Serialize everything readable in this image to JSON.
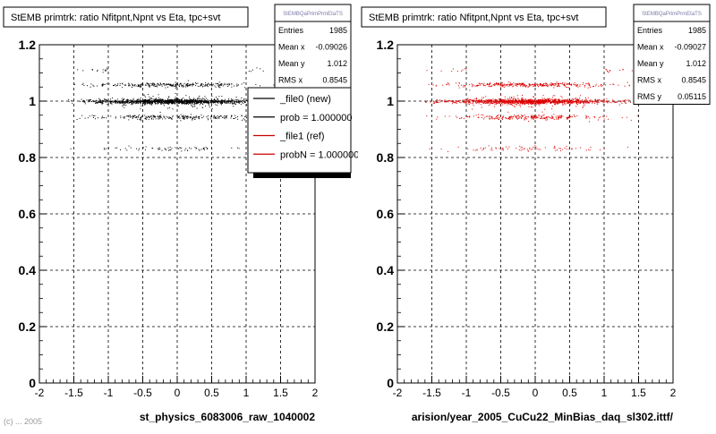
{
  "colors": {
    "frame": "#000000",
    "grid": "#000000",
    "stats_title": "#7a7aa8",
    "footer": "#999999"
  },
  "footer": {
    "text": "(c) ... 2005"
  },
  "chart_data": [
    {
      "type": "scatter",
      "title": "StEMB primtrk: ratio Nfitpnt,Npnt vs Eta, tpc+svt",
      "xlabel": "st_physics_6083006_raw_1040002",
      "ylabel": "",
      "xlim": [
        -2,
        2
      ],
      "ylim": [
        0,
        1.2
      ],
      "xticks": [
        "-2",
        "-1.5",
        "-1",
        "-0.5",
        "0",
        "0.5",
        "1",
        "1.5",
        "2"
      ],
      "yticks": [
        "0",
        "0.2",
        "0.4",
        "0.6",
        "0.8",
        "1",
        "1.2"
      ],
      "grid": true,
      "marker_color": "#000000",
      "stats": {
        "title": "StEMBQaPrimPrmEtaTS",
        "rows": [
          {
            "label": "Entries",
            "value": "1985"
          },
          {
            "label": "Mean x",
            "value": "-0.09026"
          },
          {
            "label": "Mean y",
            "value": "1.012"
          },
          {
            "label": "RMS x",
            "value": "0.8545"
          }
        ]
      },
      "legend": {
        "placement": "top-right",
        "entries": [
          {
            "label": "_file0 (new)",
            "color": "#000000"
          },
          {
            "label": "prob = 1.000000",
            "color": "#000000"
          },
          {
            "label": "_file1 (ref)",
            "color": "#cc0000"
          },
          {
            "label": "probN = 1.000000",
            "color": "#cc0000"
          }
        ]
      },
      "distribution": {
        "entries": 1985,
        "mean_x": -0.09026,
        "rms_x": 0.8545,
        "mean_y": 1.012,
        "rms_y": 0.05115,
        "x_range": [
          -1.6,
          1.6
        ],
        "y_levels": [
          1.0,
          1.111,
          1.059,
          0.944,
          0.833
        ],
        "y_level_weights": [
          0.58,
          0.1,
          0.16,
          0.12,
          0.04
        ]
      }
    },
    {
      "type": "scatter",
      "title": "StEMB primtrk: ratio Nfitpnt,Npnt vs Eta, tpc+svt",
      "xlabel": "arision/year_2005_CuCu22_MinBias_daq_sl302.ittf/",
      "ylabel": "",
      "xlim": [
        -2,
        2
      ],
      "ylim": [
        0,
        1.2
      ],
      "xticks": [
        "-2",
        "-1.5",
        "-1",
        "-0.5",
        "0",
        "0.5",
        "1",
        "1.5",
        "2"
      ],
      "yticks": [
        "0",
        "0.2",
        "0.4",
        "0.6",
        "0.8",
        "1",
        "1.2"
      ],
      "grid": true,
      "marker_color": "#dd0000",
      "stats": {
        "title": "StEMBQaPrimPrmEtaTS",
        "rows": [
          {
            "label": "Entries",
            "value": "1985"
          },
          {
            "label": "Mean x",
            "value": "-0.09027"
          },
          {
            "label": "Mean y",
            "value": "1.012"
          },
          {
            "label": "RMS x",
            "value": "0.8545"
          },
          {
            "label": "RMS y",
            "value": "0.05115"
          }
        ]
      },
      "distribution": {
        "entries": 1985,
        "mean_x": -0.09027,
        "rms_x": 0.8545,
        "mean_y": 1.012,
        "rms_y": 0.05115,
        "x_range": [
          -1.6,
          1.6
        ],
        "y_levels": [
          1.0,
          1.111,
          1.059,
          0.944,
          0.833
        ],
        "y_level_weights": [
          0.58,
          0.1,
          0.16,
          0.12,
          0.04
        ]
      }
    }
  ]
}
